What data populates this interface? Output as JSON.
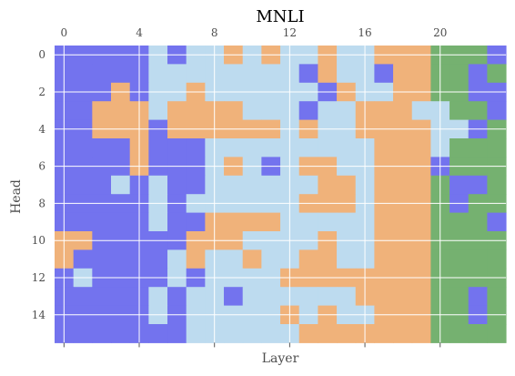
{
  "chart_data": {
    "type": "heatmap",
    "title": "MNLI",
    "xlabel": "Layer",
    "ylabel": "Head",
    "x_ticks": [
      0,
      4,
      8,
      12,
      16,
      20
    ],
    "y_ticks": [
      0,
      2,
      4,
      6,
      8,
      10,
      12,
      14
    ],
    "x_tick_position": "top",
    "n_layers": 24,
    "n_heads": 16,
    "grid": true,
    "colors": {
      "0": "#7373ee",
      "1": "#bddbef",
      "2": "#f0b27a",
      "3": "#75b170"
    },
    "matrix": [
      [
        0,
        0,
        0,
        0,
        0,
        1,
        0,
        1,
        1,
        2,
        1,
        2,
        1,
        1,
        2,
        1,
        1,
        2,
        2,
        2,
        3,
        3,
        3,
        0
      ],
      [
        0,
        0,
        0,
        0,
        0,
        1,
        1,
        1,
        1,
        1,
        1,
        1,
        1,
        0,
        2,
        1,
        1,
        0,
        2,
        2,
        3,
        3,
        0,
        3
      ],
      [
        0,
        0,
        0,
        2,
        0,
        1,
        1,
        2,
        1,
        1,
        1,
        1,
        1,
        1,
        0,
        2,
        1,
        1,
        2,
        2,
        3,
        3,
        0,
        0
      ],
      [
        0,
        0,
        2,
        2,
        2,
        1,
        2,
        2,
        2,
        2,
        1,
        1,
        1,
        0,
        1,
        1,
        2,
        2,
        2,
        1,
        1,
        3,
        3,
        0
      ],
      [
        0,
        0,
        2,
        2,
        2,
        0,
        2,
        2,
        2,
        2,
        2,
        2,
        1,
        2,
        1,
        1,
        2,
        2,
        2,
        2,
        1,
        1,
        0,
        3
      ],
      [
        0,
        0,
        0,
        0,
        2,
        0,
        0,
        0,
        1,
        1,
        1,
        1,
        1,
        1,
        1,
        1,
        1,
        2,
        2,
        2,
        1,
        3,
        3,
        3
      ],
      [
        0,
        0,
        0,
        0,
        2,
        0,
        0,
        0,
        1,
        2,
        1,
        0,
        1,
        2,
        2,
        1,
        1,
        2,
        2,
        2,
        0,
        3,
        3,
        3
      ],
      [
        0,
        0,
        0,
        1,
        0,
        1,
        0,
        0,
        1,
        1,
        1,
        1,
        1,
        1,
        2,
        2,
        1,
        2,
        2,
        2,
        3,
        0,
        0,
        3
      ],
      [
        0,
        0,
        0,
        0,
        0,
        1,
        0,
        1,
        1,
        1,
        1,
        1,
        1,
        2,
        2,
        2,
        1,
        2,
        2,
        2,
        3,
        0,
        3,
        3
      ],
      [
        0,
        0,
        0,
        0,
        0,
        1,
        0,
        0,
        2,
        2,
        2,
        2,
        1,
        1,
        1,
        1,
        1,
        2,
        2,
        2,
        3,
        3,
        3,
        0
      ],
      [
        2,
        2,
        0,
        0,
        0,
        0,
        0,
        2,
        2,
        2,
        1,
        1,
        1,
        1,
        2,
        1,
        1,
        2,
        2,
        2,
        3,
        3,
        3,
        3
      ],
      [
        2,
        0,
        0,
        0,
        0,
        0,
        1,
        2,
        1,
        1,
        2,
        1,
        1,
        2,
        2,
        1,
        1,
        2,
        2,
        2,
        3,
        3,
        3,
        3
      ],
      [
        0,
        1,
        0,
        0,
        0,
        0,
        1,
        0,
        1,
        1,
        1,
        1,
        2,
        2,
        2,
        2,
        2,
        2,
        2,
        2,
        3,
        3,
        3,
        3
      ],
      [
        0,
        0,
        0,
        0,
        0,
        1,
        0,
        1,
        1,
        0,
        1,
        1,
        1,
        1,
        1,
        1,
        2,
        2,
        2,
        2,
        3,
        3,
        0,
        3
      ],
      [
        0,
        0,
        0,
        0,
        0,
        1,
        0,
        1,
        1,
        1,
        1,
        1,
        2,
        1,
        2,
        1,
        1,
        2,
        2,
        2,
        3,
        3,
        0,
        3
      ],
      [
        0,
        0,
        0,
        0,
        0,
        0,
        0,
        1,
        1,
        1,
        1,
        1,
        1,
        2,
        2,
        2,
        2,
        2,
        2,
        2,
        3,
        3,
        3,
        3
      ]
    ]
  }
}
